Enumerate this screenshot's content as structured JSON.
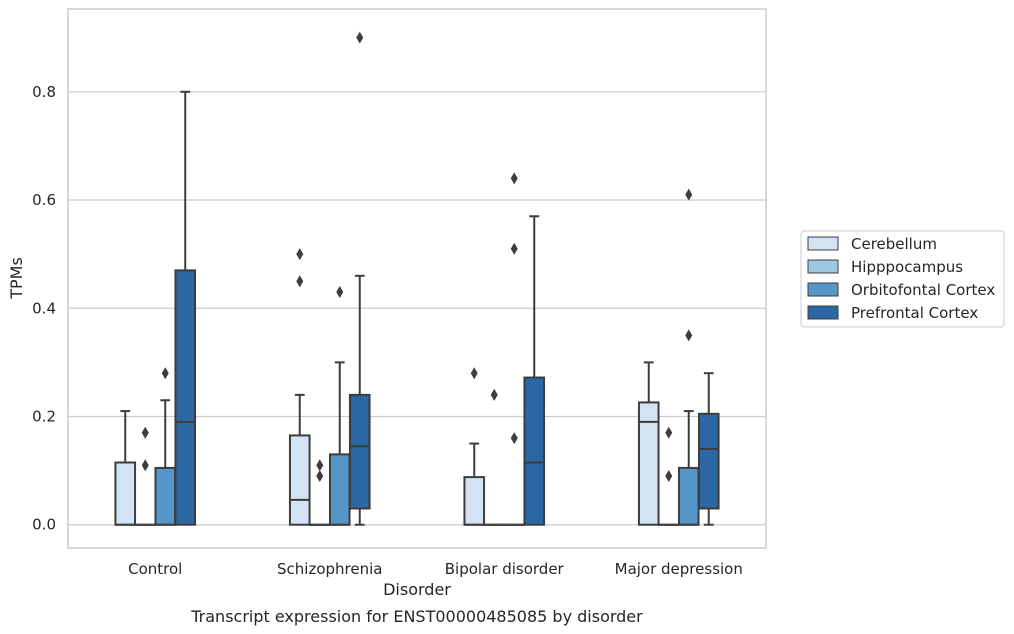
{
  "chart_data": {
    "type": "box",
    "title": "",
    "caption": "Transcript expression for ENST00000485085 by disorder",
    "xlabel": "Disorder",
    "ylabel": "TPMs",
    "ylim": [
      -0.043,
      0.953
    ],
    "yticks": [
      0.0,
      0.2,
      0.4,
      0.6,
      0.8
    ],
    "ytick_labels": [
      "0.0",
      "0.2",
      "0.4",
      "0.6",
      "0.8"
    ],
    "grid": "horizontal",
    "legend_position": "right",
    "categories": [
      "Control",
      "Schizophrenia",
      "Bipolar disorder",
      "Major depression"
    ],
    "series": [
      {
        "name": "Cerebellum",
        "color": "#d4e3f3",
        "boxes": [
          {
            "q1": 0.0,
            "median": 0.0,
            "q3": 0.115,
            "whisker_low": 0.0,
            "whisker_high": 0.21,
            "outliers": []
          },
          {
            "q1": 0.0,
            "median": 0.046,
            "q3": 0.165,
            "whisker_low": 0.0,
            "whisker_high": 0.24,
            "outliers": [
              0.45,
              0.5
            ]
          },
          {
            "q1": 0.0,
            "median": 0.0,
            "q3": 0.088,
            "whisker_low": 0.0,
            "whisker_high": 0.15,
            "outliers": [
              0.28
            ]
          },
          {
            "q1": 0.0,
            "median": 0.19,
            "q3": 0.226,
            "whisker_low": 0.0,
            "whisker_high": 0.3,
            "outliers": []
          }
        ]
      },
      {
        "name": "Hipppocampus",
        "color": "#9fc7e1",
        "boxes": [
          {
            "q1": 0.0,
            "median": 0.0,
            "q3": 0.0,
            "whisker_low": 0.0,
            "whisker_high": 0.0,
            "outliers": [
              0.11,
              0.17
            ]
          },
          {
            "q1": 0.0,
            "median": 0.0,
            "q3": 0.0,
            "whisker_low": 0.0,
            "whisker_high": 0.0,
            "outliers": [
              0.09,
              0.11
            ]
          },
          {
            "q1": 0.0,
            "median": 0.0,
            "q3": 0.0,
            "whisker_low": 0.0,
            "whisker_high": 0.0,
            "outliers": [
              0.24
            ]
          },
          {
            "q1": 0.0,
            "median": 0.0,
            "q3": 0.0,
            "whisker_low": 0.0,
            "whisker_high": 0.0,
            "outliers": [
              0.09,
              0.17
            ]
          }
        ]
      },
      {
        "name": "Orbitofontal Cortex",
        "color": "#5596c8",
        "boxes": [
          {
            "q1": 0.0,
            "median": 0.0,
            "q3": 0.105,
            "whisker_low": 0.0,
            "whisker_high": 0.23,
            "outliers": [
              0.28
            ]
          },
          {
            "q1": 0.0,
            "median": 0.0,
            "q3": 0.13,
            "whisker_low": 0.0,
            "whisker_high": 0.3,
            "outliers": [
              0.43
            ]
          },
          {
            "q1": 0.0,
            "median": 0.0,
            "q3": 0.0,
            "whisker_low": 0.0,
            "whisker_high": 0.0,
            "outliers": [
              0.16,
              0.51,
              0.64
            ]
          },
          {
            "q1": 0.0,
            "median": 0.0,
            "q3": 0.105,
            "whisker_low": 0.0,
            "whisker_high": 0.21,
            "outliers": [
              0.35,
              0.61
            ]
          }
        ]
      },
      {
        "name": "Prefrontal Cortex",
        "color": "#2a67a3",
        "boxes": [
          {
            "q1": 0.0,
            "median": 0.19,
            "q3": 0.47,
            "whisker_low": 0.0,
            "whisker_high": 0.8,
            "outliers": []
          },
          {
            "q1": 0.03,
            "median": 0.145,
            "q3": 0.24,
            "whisker_low": 0.0,
            "whisker_high": 0.46,
            "outliers": [
              0.9
            ]
          },
          {
            "q1": 0.0,
            "median": 0.115,
            "q3": 0.272,
            "whisker_low": 0.0,
            "whisker_high": 0.57,
            "outliers": []
          },
          {
            "q1": 0.03,
            "median": 0.14,
            "q3": 0.205,
            "whisker_low": 0.0,
            "whisker_high": 0.28,
            "outliers": []
          }
        ]
      }
    ]
  }
}
